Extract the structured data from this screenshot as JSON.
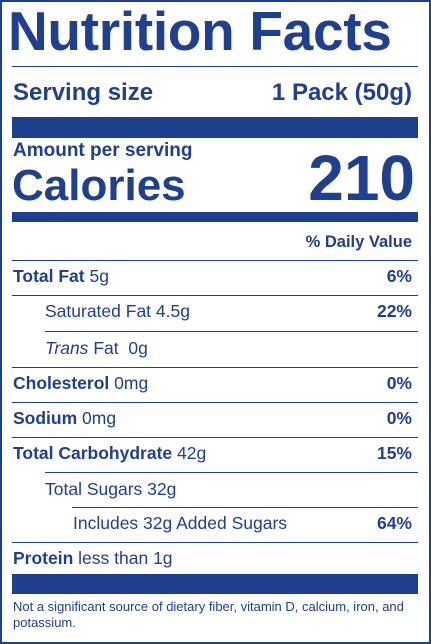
{
  "label": {
    "title": "Nutrition Facts",
    "serving": {
      "label": "Serving size",
      "value": "1 Pack (50g)"
    },
    "amount_per_serving": "Amount per serving",
    "calories": {
      "label": "Calories",
      "value": "210"
    },
    "daily_value_header": "% Daily Value",
    "rows": [
      {
        "name": "Total Fat",
        "amount": "5g",
        "dv": "6%"
      },
      {
        "name": "Saturated Fat",
        "amount": "4.5g",
        "dv": "22%"
      },
      {
        "name_italic": "Trans",
        "name": "Fat",
        "amount": "0g",
        "dv": ""
      },
      {
        "name": "Cholesterol",
        "amount": "0mg",
        "dv": "0%"
      },
      {
        "name": "Sodium",
        "amount": "0mg",
        "dv": "0%"
      },
      {
        "name": "Total Carbohydrate",
        "amount": "42g",
        "dv": "15%"
      },
      {
        "name": "Total Sugars",
        "amount": "32g",
        "dv": ""
      },
      {
        "name": "Includes 32g Added Sugars",
        "amount": "",
        "dv": "64%"
      },
      {
        "name": "Protein",
        "amount": "less than 1g",
        "dv": ""
      }
    ],
    "footnote": "Not a significant source of dietary fiber, vitamin D, calcium, iron, and potassium.",
    "colors": {
      "ink": "#1f3f8f",
      "background": "#ffffff"
    }
  }
}
